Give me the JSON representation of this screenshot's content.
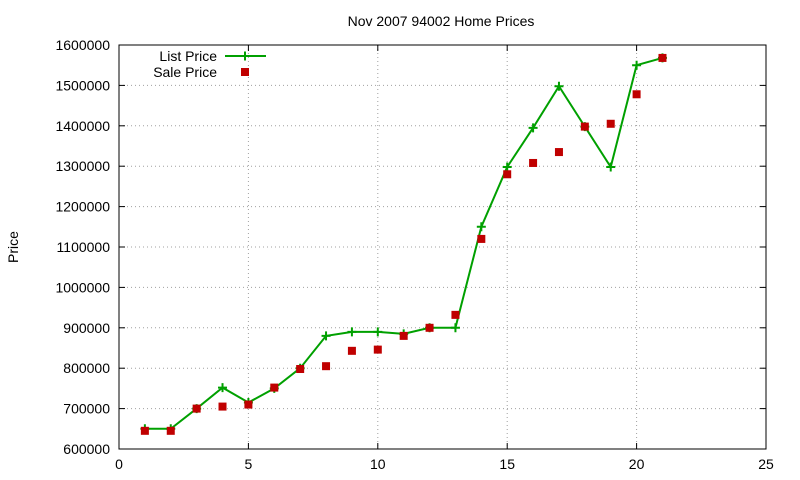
{
  "chart_data": {
    "type": "line",
    "title": "Nov 2007 94002 Home Prices",
    "xlabel": "",
    "ylabel": "Price",
    "xlim": [
      0,
      25
    ],
    "ylim": [
      600000,
      1600000
    ],
    "x_ticks": [
      0,
      5,
      10,
      15,
      20,
      25
    ],
    "y_ticks": [
      600000,
      700000,
      800000,
      900000,
      1000000,
      1100000,
      1200000,
      1300000,
      1400000,
      1500000,
      1600000
    ],
    "grid": true,
    "legend_position": "top-left",
    "series": [
      {
        "name": "List Price",
        "style": "linespoints",
        "marker": "plus",
        "color": "#00a000",
        "x": [
          1,
          2,
          3,
          4,
          5,
          6,
          7,
          8,
          9,
          10,
          11,
          12,
          13,
          14,
          15,
          16,
          17,
          18,
          19,
          20,
          21
        ],
        "y": [
          650000,
          650000,
          700000,
          752000,
          715000,
          750000,
          800000,
          880000,
          890000,
          890000,
          885000,
          900000,
          900000,
          1150000,
          1298000,
          1395000,
          1498000,
          1398000,
          1298000,
          1550000,
          1568000
        ]
      },
      {
        "name": "Sale Price",
        "style": "points",
        "marker": "square",
        "color": "#c00000",
        "x": [
          1,
          2,
          3,
          4,
          5,
          6,
          7,
          8,
          9,
          10,
          11,
          12,
          13,
          14,
          15,
          16,
          17,
          18,
          19,
          20,
          21
        ],
        "y": [
          645000,
          645000,
          700000,
          705000,
          710000,
          752000,
          798000,
          805000,
          843000,
          846000,
          880000,
          900000,
          932000,
          1120000,
          1280000,
          1308000,
          1335000,
          1398000,
          1405000,
          1478000,
          1568000
        ]
      }
    ]
  }
}
